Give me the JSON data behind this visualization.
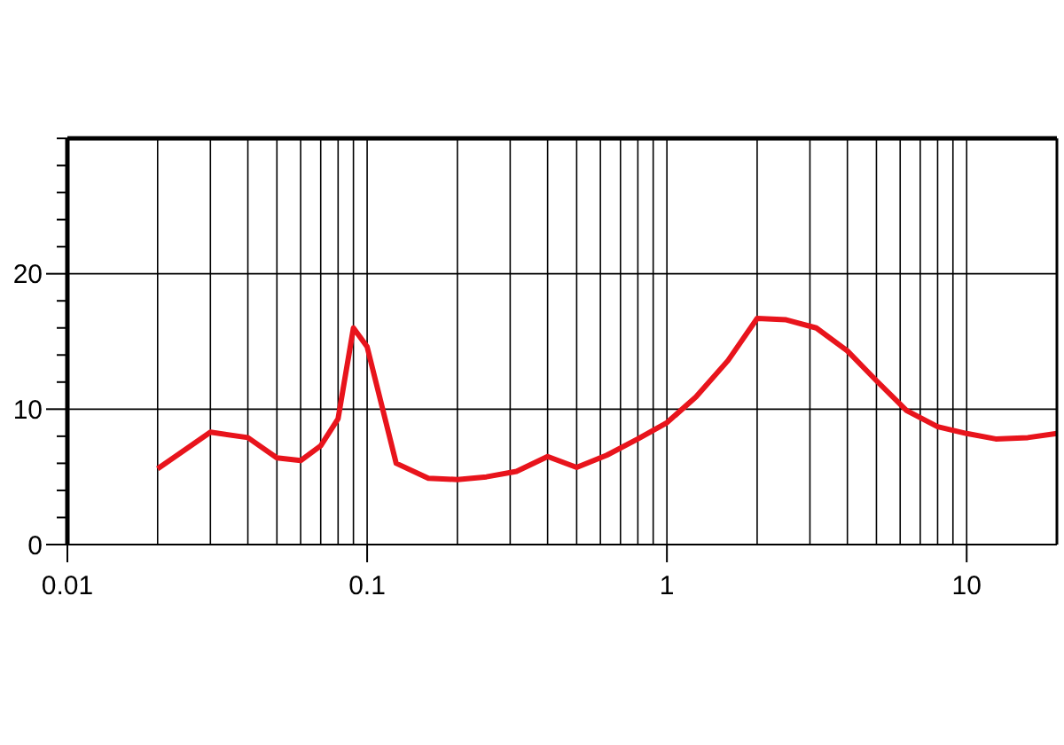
{
  "chart_data": {
    "type": "line",
    "log": "x",
    "grid": true,
    "line_style": "solid",
    "marker": "none",
    "xlim": [
      0.01,
      20
    ],
    "ylim": [
      0,
      30
    ],
    "xticks": [
      0.01,
      {
        "value": 0.02,
        "label": null
      },
      {
        "value": 0.03,
        "label": null
      },
      {
        "value": 0.04,
        "label": null
      },
      {
        "value": 0.05,
        "label": null
      },
      {
        "value": 0.06,
        "label": null
      },
      {
        "value": 0.07,
        "label": null
      },
      {
        "value": 0.08,
        "label": null
      },
      {
        "value": 0.09,
        "label": null
      },
      0.1,
      {
        "value": 0.2,
        "label": null
      },
      {
        "value": 0.3,
        "label": null
      },
      {
        "value": 0.4,
        "label": null
      },
      {
        "value": 0.5,
        "label": null
      },
      {
        "value": 0.6,
        "label": null
      },
      {
        "value": 0.7,
        "label": null
      },
      {
        "value": 0.8,
        "label": null
      },
      {
        "value": 0.9,
        "label": null
      },
      1,
      {
        "value": 2,
        "label": null
      },
      {
        "value": 3,
        "label": null
      },
      {
        "value": 4,
        "label": null
      },
      {
        "value": 5,
        "label": null
      },
      {
        "value": 6,
        "label": null
      },
      {
        "value": 7,
        "label": null
      },
      {
        "value": 8,
        "label": null
      },
      {
        "value": 9,
        "label": null
      },
      10,
      {
        "value": 20,
        "label": null
      }
    ],
    "yticks": [
      0,
      {
        "value": 2,
        "label": null
      },
      {
        "value": 4,
        "label": null
      },
      {
        "value": 6,
        "label": null
      },
      {
        "value": 8,
        "label": null
      },
      10,
      {
        "value": 12,
        "label": null
      },
      {
        "value": 14,
        "label": null
      },
      {
        "value": 16,
        "label": null
      },
      {
        "value": 18,
        "label": null
      },
      20,
      {
        "value": 22,
        "label": null
      },
      {
        "value": 24,
        "label": null
      },
      {
        "value": 26,
        "label": null
      },
      {
        "value": 28,
        "label": null
      },
      {
        "value": 30,
        "label": null
      }
    ],
    "series": [
      {
        "color": "#e8141c",
        "x": [
          0.02,
          0.03,
          0.04,
          0.05,
          0.06,
          0.07,
          0.08,
          0.09,
          0.1,
          0.125,
          0.16,
          0.2,
          0.25,
          0.315,
          0.4,
          0.5,
          0.63,
          0.8,
          1,
          1.25,
          1.6,
          2,
          2.5,
          3.15,
          4,
          5,
          6.3,
          8,
          10,
          12.5,
          16,
          20
        ],
        "values": [
          5.6,
          8.3,
          7.9,
          6.4,
          6.2,
          7.3,
          9.3,
          16.0,
          14.6,
          6.0,
          4.9,
          4.8,
          5.0,
          5.4,
          6.5,
          5.7,
          6.6,
          7.8,
          9.0,
          10.9,
          13.6,
          16.7,
          16.6,
          16.0,
          14.3,
          12.1,
          9.9,
          8.7,
          8.2,
          7.8,
          7.9,
          8.2
        ]
      }
    ]
  }
}
